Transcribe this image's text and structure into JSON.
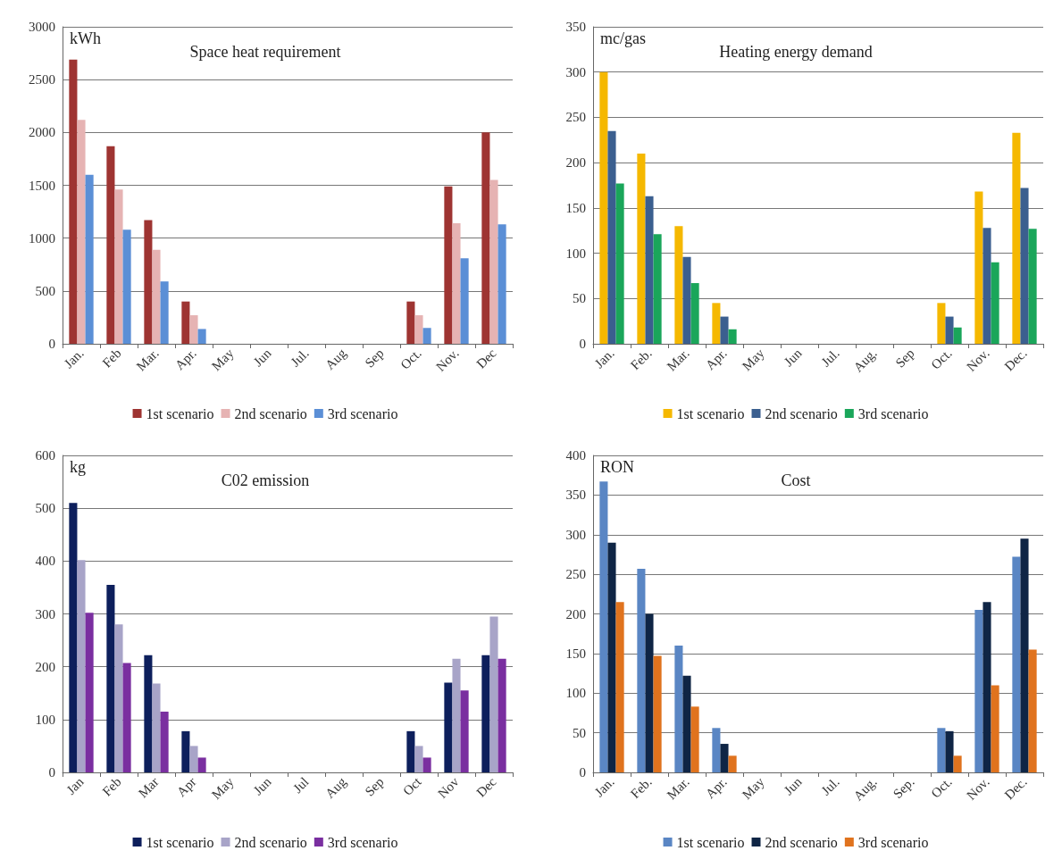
{
  "chart_data": [
    {
      "type": "bar",
      "title": "Space heat requirement",
      "ylabel": "kWh",
      "categories": [
        "Jan.",
        "Feb",
        "Mar.",
        "Apr.",
        "May",
        "Jun",
        "Jul.",
        "Aug",
        "Sep",
        "Oct.",
        "Nov.",
        "Dec"
      ],
      "series": [
        {
          "name": "1st scenario",
          "color": "#9e3432",
          "values": [
            2690,
            1870,
            1170,
            400,
            0,
            0,
            0,
            0,
            0,
            400,
            1490,
            2000
          ]
        },
        {
          "name": "2nd scenario",
          "color": "#e6b3b3",
          "values": [
            2120,
            1460,
            890,
            270,
            0,
            0,
            0,
            0,
            0,
            270,
            1140,
            1550
          ]
        },
        {
          "name": "3rd scenario",
          "color": "#5b8fd6",
          "values": [
            1600,
            1080,
            590,
            140,
            0,
            0,
            0,
            0,
            0,
            150,
            810,
            1130
          ]
        }
      ],
      "ylim": [
        0,
        3000
      ],
      "yticks": [
        0,
        500,
        1000,
        1500,
        2000,
        2500,
        3000
      ],
      "grid": "y",
      "legend": "bottom"
    },
    {
      "type": "bar",
      "title": "Heating energy demand",
      "ylabel": "mc/gas",
      "categories": [
        "Jan.",
        "Feb.",
        "Mar.",
        "Apr.",
        "May",
        "Jun",
        "Jul.",
        "Aug.",
        "Sep",
        "Oct.",
        "Nov.",
        "Dec."
      ],
      "series": [
        {
          "name": "1st scenario",
          "color": "#f5b800",
          "values": [
            300,
            210,
            130,
            45,
            0,
            0,
            0,
            0,
            0,
            45,
            168,
            233
          ]
        },
        {
          "name": "2nd scenario",
          "color": "#3b5f8f",
          "values": [
            235,
            163,
            96,
            30,
            0,
            0,
            0,
            0,
            0,
            30,
            128,
            172
          ]
        },
        {
          "name": "3rd scenario",
          "color": "#1aa65a",
          "values": [
            177,
            121,
            67,
            16,
            0,
            0,
            0,
            0,
            0,
            18,
            90,
            127
          ]
        }
      ],
      "ylim": [
        0,
        350
      ],
      "yticks": [
        0,
        50,
        100,
        150,
        200,
        250,
        300,
        350
      ],
      "grid": "y",
      "legend": "bottom"
    },
    {
      "type": "bar",
      "title": "C02 emission",
      "ylabel": "kg",
      "categories": [
        "Jan",
        "Feb",
        "Mar",
        "Apr",
        "May",
        "Jun",
        "Jul",
        "Aug",
        "Sep",
        "Oct",
        "Nov",
        "Dec"
      ],
      "series": [
        {
          "name": "1st scenario",
          "color": "#0d1f5c",
          "values": [
            510,
            355,
            222,
            78,
            0,
            0,
            0,
            0,
            0,
            78,
            170,
            222
          ]
        },
        {
          "name": "2nd scenario",
          "color": "#a8a4c8",
          "values": [
            402,
            280,
            168,
            50,
            0,
            0,
            0,
            0,
            0,
            50,
            215,
            295
          ]
        },
        {
          "name": "3rd scenario",
          "color": "#7a2fa0",
          "values": [
            302,
            207,
            115,
            28,
            0,
            0,
            0,
            0,
            0,
            28,
            155,
            215
          ]
        }
      ],
      "ylim": [
        0,
        600
      ],
      "yticks": [
        0,
        100,
        200,
        300,
        400,
        500,
        600
      ],
      "grid": "y",
      "legend": "bottom"
    },
    {
      "type": "bar",
      "title": "Cost",
      "ylabel": "RON",
      "categories": [
        "Jan.",
        "Feb.",
        "Mar.",
        "Apr.",
        "May",
        "Jun",
        "Jul.",
        "Aug.",
        "Sep.",
        "Oct.",
        "Nov.",
        "Dec."
      ],
      "series": [
        {
          "name": "1st scenario",
          "color": "#5a86c4",
          "values": [
            367,
            257,
            160,
            56,
            0,
            0,
            0,
            0,
            0,
            56,
            205,
            272
          ]
        },
        {
          "name": "2nd scenario",
          "color": "#0f2545",
          "values": [
            290,
            200,
            122,
            36,
            0,
            0,
            0,
            0,
            0,
            52,
            215,
            295
          ]
        },
        {
          "name": "3rd scenario",
          "color": "#e0731e",
          "values": [
            215,
            147,
            83,
            21,
            0,
            0,
            0,
            0,
            0,
            21,
            110,
            155
          ]
        }
      ],
      "ylim": [
        0,
        400
      ],
      "yticks": [
        0,
        50,
        100,
        150,
        200,
        250,
        300,
        350,
        400
      ],
      "grid": "y",
      "legend": "bottom"
    }
  ]
}
